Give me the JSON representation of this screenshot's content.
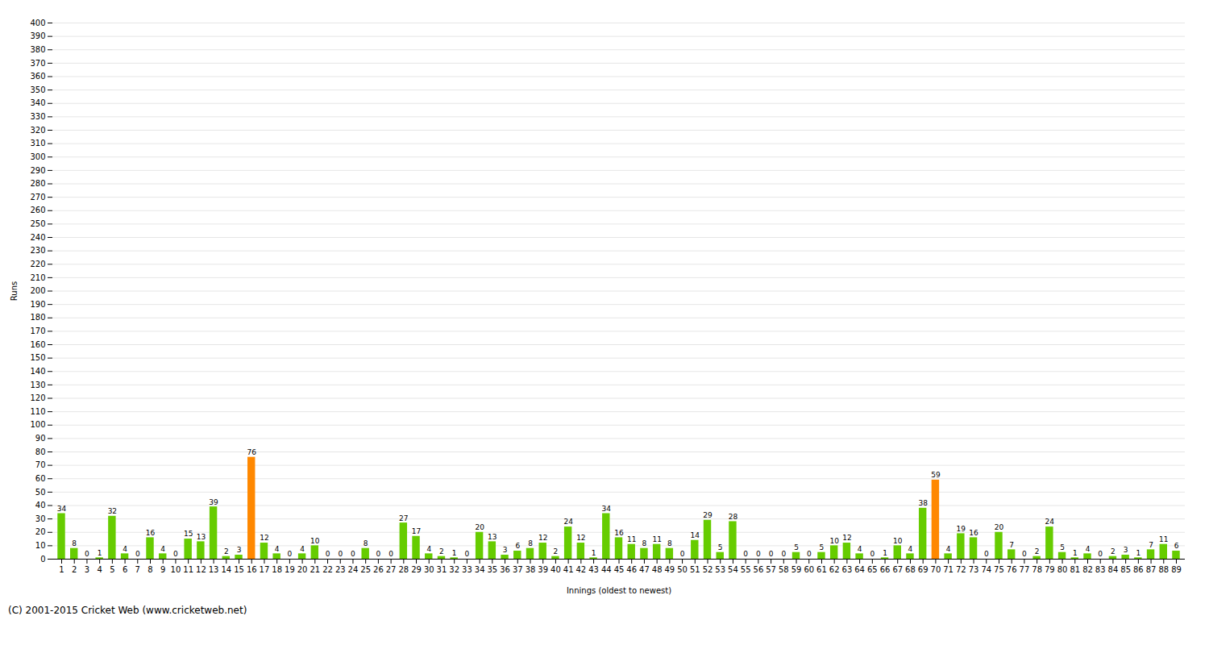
{
  "chart_data": {
    "type": "bar",
    "xlabel": "Innings (oldest to newest)",
    "ylabel": "Runs",
    "categories": [
      1,
      2,
      3,
      4,
      5,
      6,
      7,
      8,
      9,
      10,
      11,
      12,
      13,
      14,
      15,
      16,
      17,
      18,
      19,
      20,
      21,
      22,
      23,
      24,
      25,
      26,
      27,
      28,
      29,
      30,
      31,
      32,
      33,
      34,
      35,
      36,
      37,
      38,
      39,
      40,
      41,
      42,
      43,
      44,
      45,
      46,
      47,
      48,
      49,
      50,
      51,
      52,
      53,
      54,
      55,
      56,
      57,
      58,
      59,
      60,
      61,
      62,
      63,
      64,
      65,
      66,
      67,
      68,
      69,
      70,
      71,
      72,
      73,
      74,
      75,
      76,
      77,
      78,
      79,
      80,
      81,
      82,
      83,
      84,
      85,
      86,
      87,
      88,
      89
    ],
    "values": [
      34,
      8,
      0,
      1,
      32,
      4,
      0,
      16,
      4,
      0,
      15,
      13,
      39,
      2,
      3,
      76,
      12,
      4,
      0,
      4,
      10,
      0,
      0,
      0,
      8,
      0,
      0,
      27,
      17,
      4,
      2,
      1,
      0,
      20,
      13,
      3,
      6,
      8,
      12,
      2,
      24,
      12,
      1,
      34,
      16,
      11,
      8,
      11,
      8,
      0,
      14,
      29,
      5,
      28,
      0,
      0,
      0,
      0,
      5,
      0,
      5,
      10,
      12,
      4,
      0,
      1,
      10,
      4,
      38,
      59,
      4,
      19,
      16,
      0,
      20,
      7,
      0,
      2,
      24,
      5,
      1,
      4,
      0,
      2,
      3,
      1,
      7,
      11,
      6
    ],
    "colors": [
      "#66cc00",
      "#66cc00",
      "#66cc00",
      "#66cc00",
      "#66cc00",
      "#66cc00",
      "#66cc00",
      "#66cc00",
      "#66cc00",
      "#66cc00",
      "#66cc00",
      "#66cc00",
      "#66cc00",
      "#66cc00",
      "#66cc00",
      "#ff8800",
      "#66cc00",
      "#66cc00",
      "#66cc00",
      "#66cc00",
      "#66cc00",
      "#66cc00",
      "#66cc00",
      "#66cc00",
      "#66cc00",
      "#66cc00",
      "#66cc00",
      "#66cc00",
      "#66cc00",
      "#66cc00",
      "#66cc00",
      "#66cc00",
      "#66cc00",
      "#66cc00",
      "#66cc00",
      "#66cc00",
      "#66cc00",
      "#66cc00",
      "#66cc00",
      "#66cc00",
      "#66cc00",
      "#66cc00",
      "#66cc00",
      "#66cc00",
      "#66cc00",
      "#66cc00",
      "#66cc00",
      "#66cc00",
      "#66cc00",
      "#66cc00",
      "#66cc00",
      "#66cc00",
      "#66cc00",
      "#66cc00",
      "#66cc00",
      "#66cc00",
      "#66cc00",
      "#66cc00",
      "#66cc00",
      "#66cc00",
      "#66cc00",
      "#66cc00",
      "#66cc00",
      "#66cc00",
      "#66cc00",
      "#66cc00",
      "#66cc00",
      "#66cc00",
      "#66cc00",
      "#ff8800",
      "#66cc00",
      "#66cc00",
      "#66cc00",
      "#66cc00",
      "#66cc00",
      "#66cc00",
      "#66cc00",
      "#66cc00",
      "#66cc00",
      "#66cc00",
      "#66cc00",
      "#66cc00",
      "#66cc00",
      "#66cc00",
      "#66cc00",
      "#66cc00",
      "#66cc00",
      "#66cc00",
      "#66cc00"
    ],
    "ylim": [
      0,
      400
    ],
    "yticks": [
      0,
      10,
      20,
      30,
      40,
      50,
      60,
      70,
      80,
      90,
      100,
      110,
      120,
      130,
      140,
      150,
      160,
      170,
      180,
      190,
      200,
      210,
      220,
      230,
      240,
      250,
      260,
      270,
      280,
      290,
      300,
      310,
      320,
      330,
      340,
      350,
      360,
      370,
      380,
      390,
      400
    ],
    "grid": true,
    "data_labels": true,
    "annotations": [
      "(C) 2001-2015 Cricket Web (www.cricketweb.net)"
    ]
  }
}
